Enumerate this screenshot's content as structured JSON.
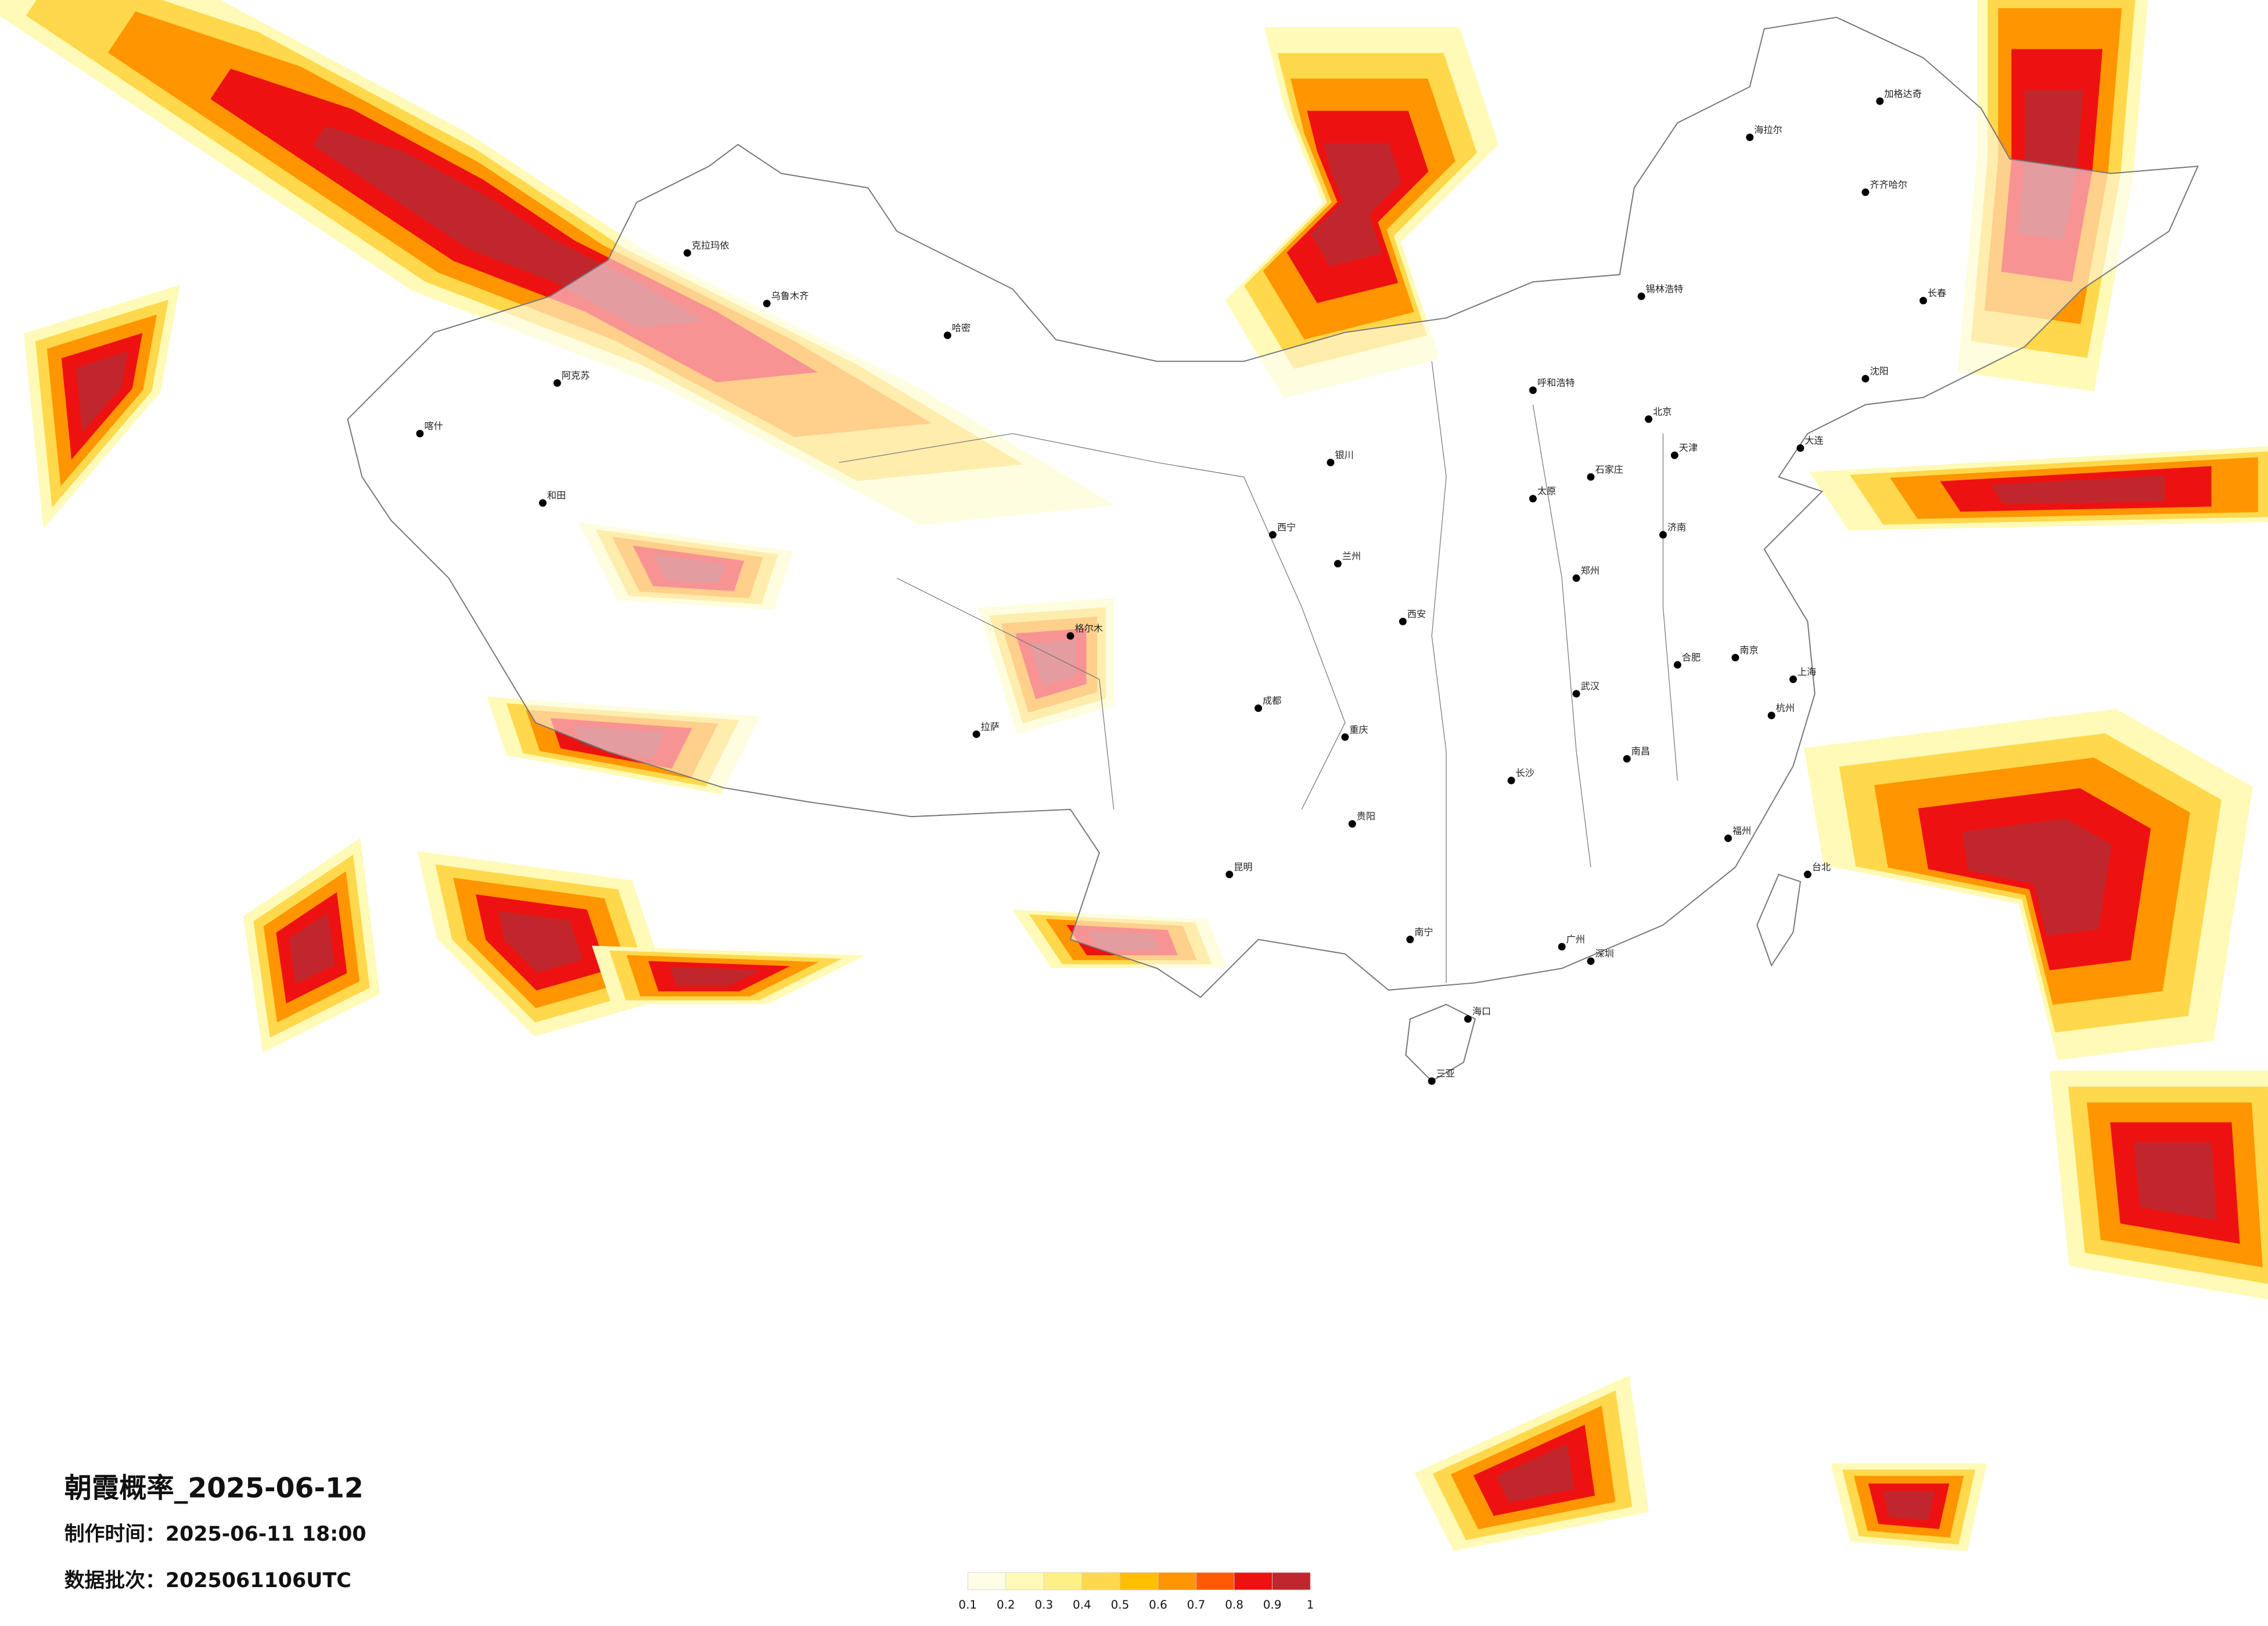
{
  "header": {
    "title": "朝霞概率_2025-06-12",
    "made": "制作时间：2025-06-11 18:00",
    "batch": "数据批次：2025061106UTC"
  },
  "legend": {
    "ticks": [
      0.1,
      0.2,
      0.3,
      0.4,
      0.5,
      0.6,
      0.7,
      0.8,
      0.9,
      1
    ],
    "colors": [
      "#fffde6",
      "#fffab8",
      "#fff085",
      "#ffd84c",
      "#ffbf00",
      "#ff9500",
      "#ff5a00",
      "#ee1111",
      "#c0272d"
    ]
  },
  "cities": [
    "北京",
    "天津",
    "石家庄",
    "太原",
    "呼和浩特",
    "济南",
    "郑州",
    "西安",
    "兰州",
    "西宁",
    "银川",
    "成都",
    "重庆",
    "贵阳",
    "昆明",
    "南宁",
    "广州",
    "深圳",
    "海口",
    "三亚",
    "长沙",
    "武汉",
    "南昌",
    "合肥",
    "南京",
    "上海",
    "杭州",
    "福州",
    "台北",
    "沈阳",
    "长春",
    "齐齐哈尔",
    "海拉尔",
    "锡林浩特",
    "大连",
    "拉萨",
    "乌鲁木齐",
    "克拉玛依",
    "哈密",
    "阿克苏",
    "喀什",
    "和田",
    "格尔木",
    "加格达奇"
  ]
}
